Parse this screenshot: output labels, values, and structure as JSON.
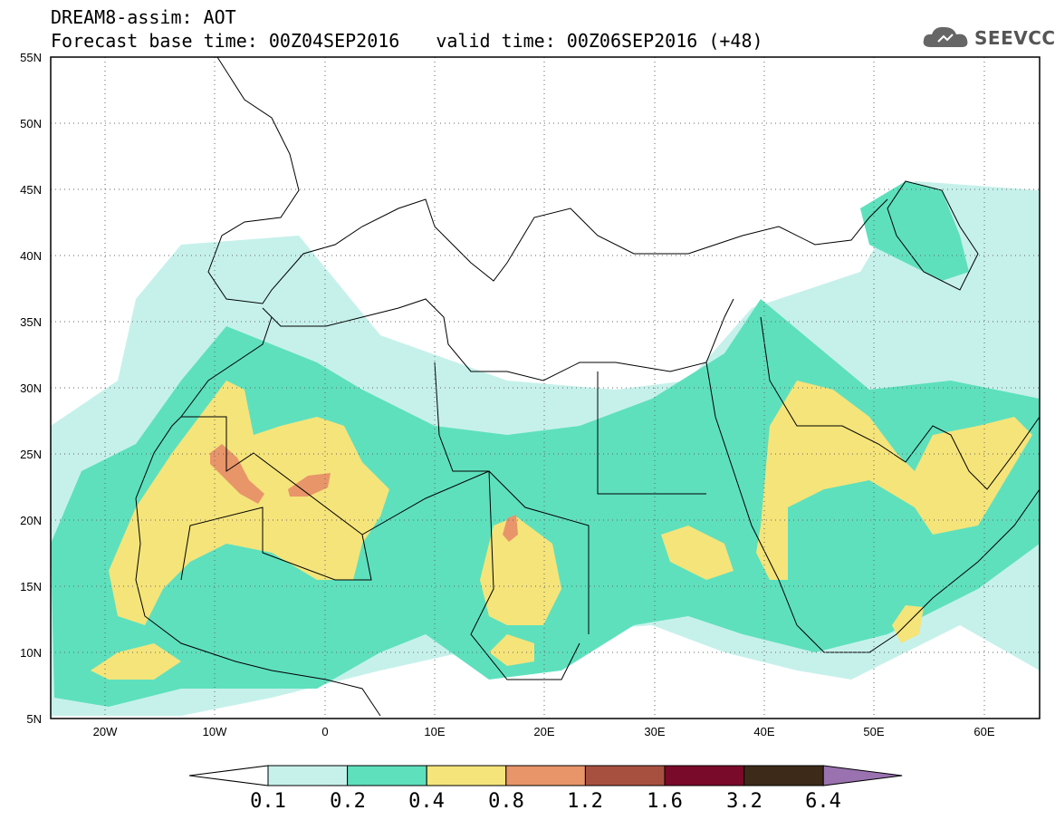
{
  "header": {
    "title": "DREAM8-assim: AOT",
    "base_time": "Forecast base time: 00Z04SEP2016",
    "valid_time": "valid time: 00Z06SEP2016 (+48)"
  },
  "logo": {
    "text": "SEEVCCC",
    "icon": "cloud-icon"
  },
  "map": {
    "lon_range": [
      -25,
      65
    ],
    "lat_range": [
      5,
      55
    ],
    "lon_ticks": [
      "20W",
      "10W",
      "0",
      "10E",
      "20E",
      "30E",
      "40E",
      "50E",
      "60E"
    ],
    "lat_ticks": [
      "55N",
      "50N",
      "45N",
      "40N",
      "35N",
      "30N",
      "25N",
      "20N",
      "15N",
      "10N",
      "5N"
    ],
    "grid": "dotted"
  },
  "colorbar": {
    "labels": [
      "0.1",
      "0.2",
      "0.4",
      "0.8",
      "1.2",
      "1.6",
      "3.2",
      "6.4"
    ],
    "colors": [
      "#ffffff",
      "#c6f1eb",
      "#5ee0bd",
      "#f5e47a",
      "#e8956a",
      "#a8503f",
      "#7a0a2a",
      "#3d2a18",
      "#9a72b0"
    ]
  }
}
